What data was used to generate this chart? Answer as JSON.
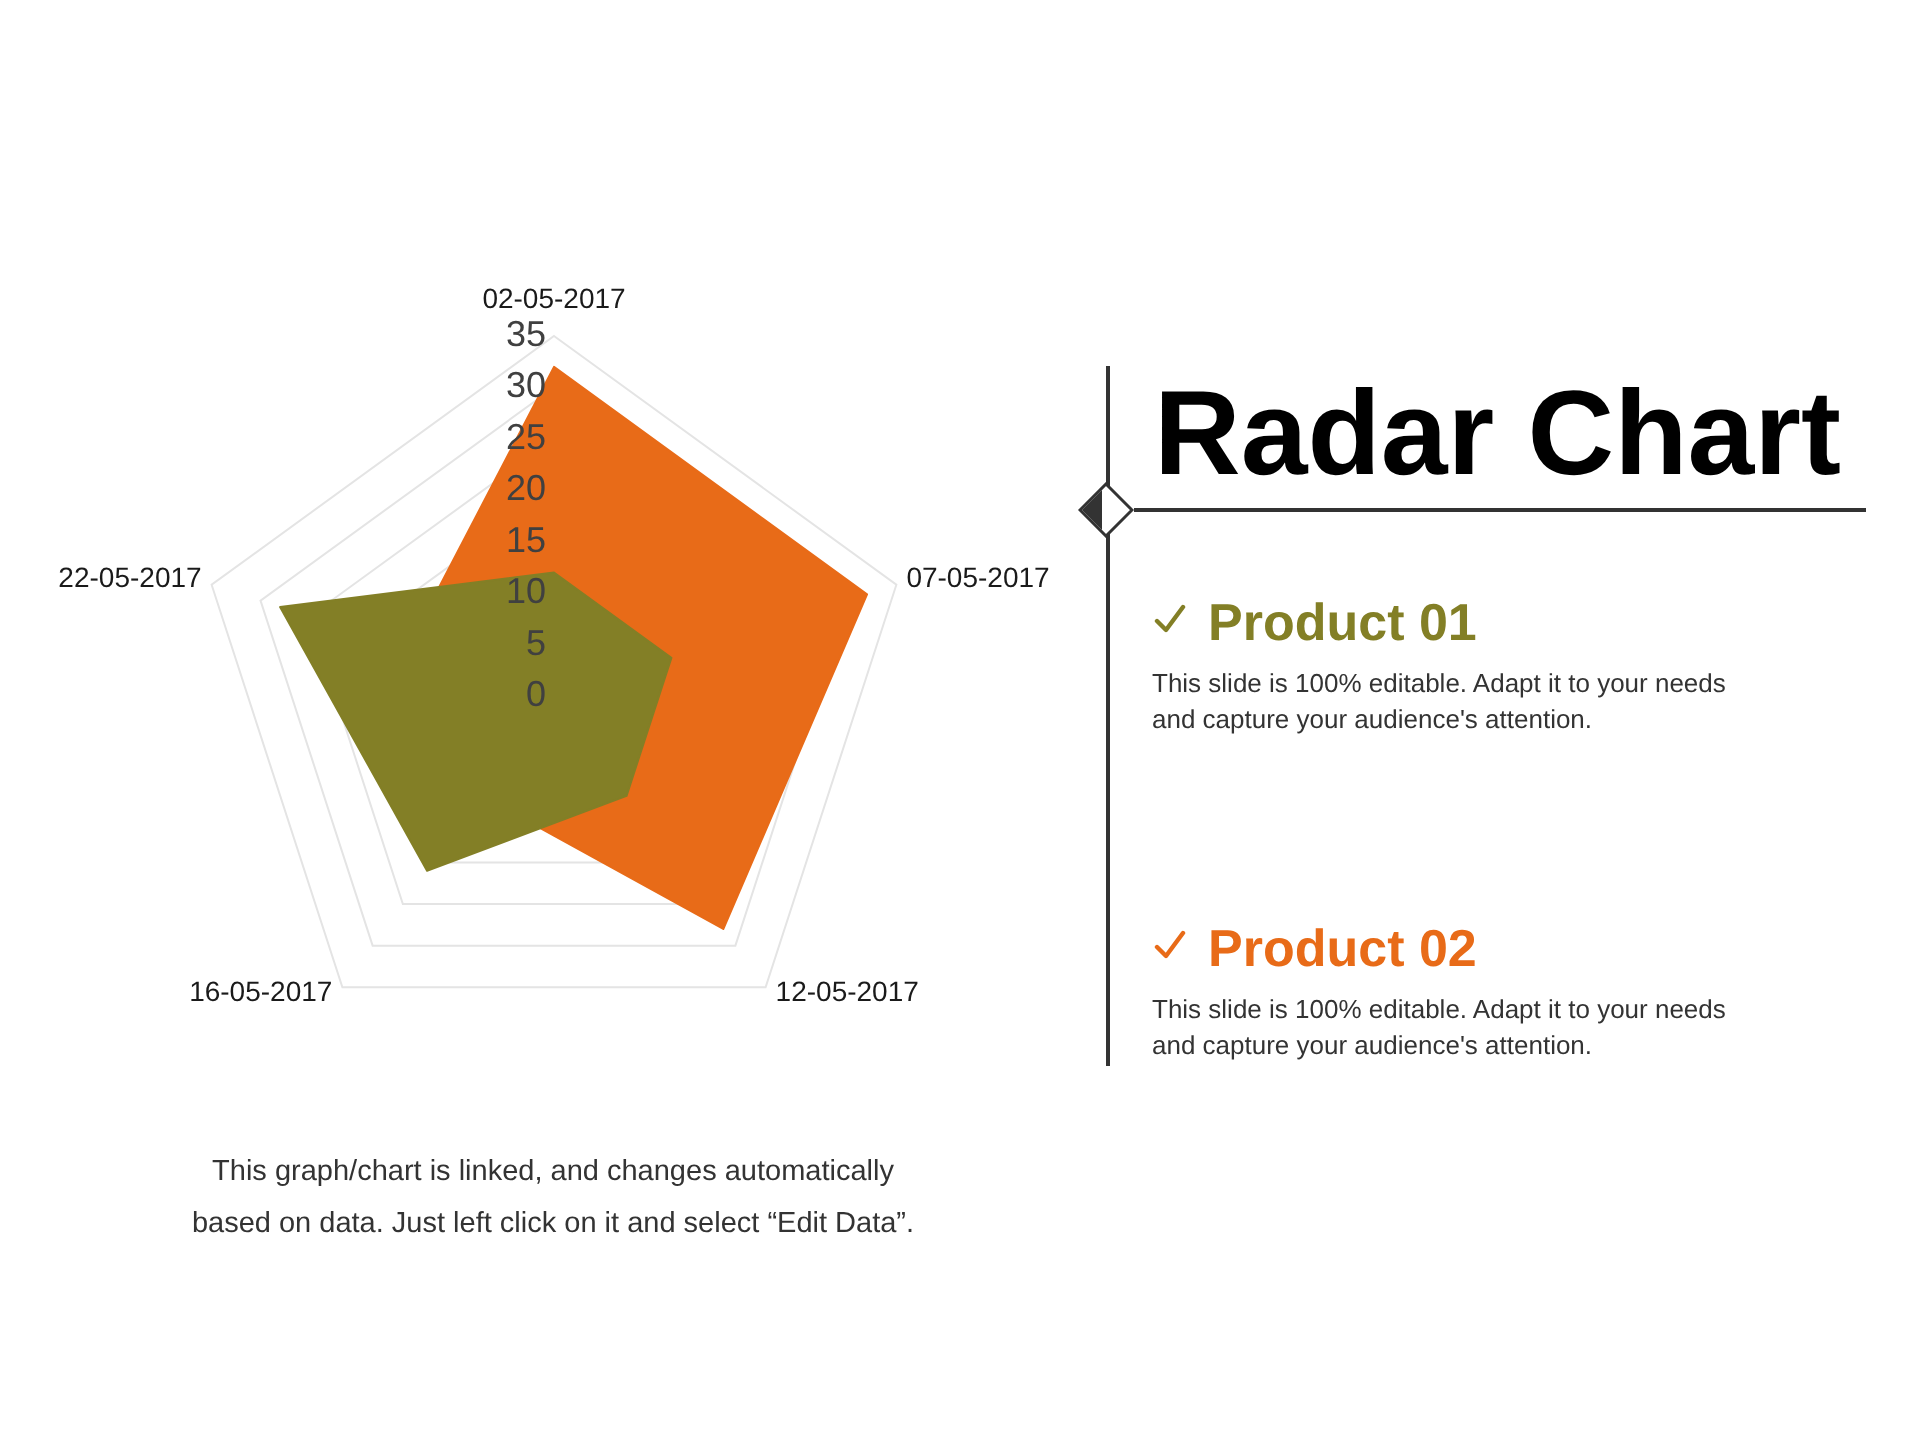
{
  "chart_data": {
    "type": "radar",
    "title": "Radar Chart",
    "categories": [
      "02-05-2017",
      "07-05-2017",
      "12-05-2017",
      "16-05-2017",
      "22-05-2017"
    ],
    "series": [
      {
        "name": "Product 01",
        "color": "#837f26",
        "values": [
          12,
          12,
          12,
          21,
          28
        ]
      },
      {
        "name": "Product 02",
        "color": "#e86b18",
        "values": [
          32,
          32,
          28,
          12,
          15
        ]
      }
    ],
    "ylim": [
      0,
      35
    ],
    "yticks": [
      0,
      5,
      10,
      15,
      20,
      25,
      30,
      35
    ],
    "grid": true,
    "legend": "right",
    "annotations": [
      "This slide is 100% editable. Adapt it to your needs and capture your audience's attention.",
      "This slide is 100% editable. Adapt it to your needs and capture your audience's attention.",
      "This graph/chart is linked, and changes automatically based on data. Just left click on it and select “Edit Data”."
    ]
  }
}
